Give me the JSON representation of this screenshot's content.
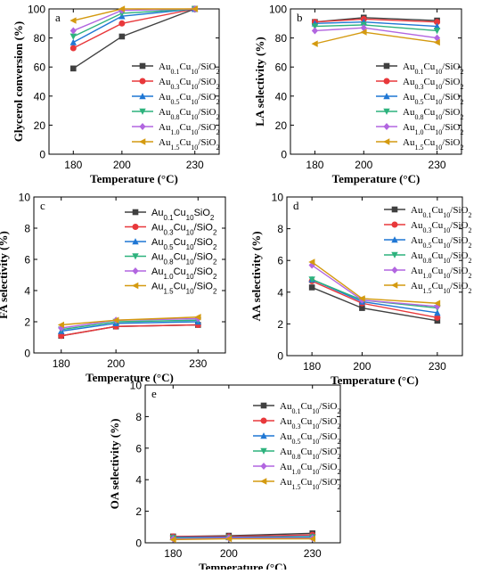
{
  "chart_data": [
    {
      "type": "line",
      "panel_label": "a",
      "ylabel": "Glycerol conversion (%)",
      "xlabel": "Temperature (°C)",
      "x": [
        180,
        200,
        230
      ],
      "x_tick_labels": [
        "180",
        "200",
        "230"
      ],
      "ylim": [
        0,
        100
      ],
      "y_ticks": [
        "0",
        "20",
        "40",
        "60",
        "80",
        "100"
      ],
      "legend_placement": "bottom-right",
      "series": [
        {
          "name": "Au0.1Cu10/SiO2",
          "values": [
            59,
            81,
            100
          ]
        },
        {
          "name": "Au0.3Cu10/SiO2",
          "values": [
            73,
            90,
            100
          ]
        },
        {
          "name": "Au0.5Cu10/SiO2",
          "values": [
            77,
            95,
            100
          ]
        },
        {
          "name": "Au0.8Cu10/SiO2",
          "values": [
            81,
            97,
            100
          ]
        },
        {
          "name": "Au1.0Cu10/SiO2",
          "values": [
            85,
            99,
            100
          ]
        },
        {
          "name": "Au1.5Cu10/SiO2",
          "values": [
            92,
            100,
            100
          ]
        }
      ]
    },
    {
      "type": "line",
      "panel_label": "b",
      "ylabel": "LA selectivity (%)",
      "xlabel": "Temperature (°C)",
      "x": [
        180,
        200,
        230
      ],
      "x_tick_labels": [
        "180",
        "200",
        "230"
      ],
      "ylim": [
        0,
        100
      ],
      "y_ticks": [
        "0",
        "20",
        "40",
        "60",
        "80",
        "100"
      ],
      "legend_placement": "bottom-right",
      "series": [
        {
          "name": "Au0.1Cu10/SiO2",
          "values": [
            91,
            94,
            92
          ]
        },
        {
          "name": "Au0.3Cu10/SiO2",
          "values": [
            91,
            93,
            91
          ]
        },
        {
          "name": "Au0.5Cu10/SiO2",
          "values": [
            90,
            91,
            88
          ]
        },
        {
          "name": "Au0.8Cu10/SiO2",
          "values": [
            88,
            89,
            85
          ]
        },
        {
          "name": "Au1.0Cu10/SiO2",
          "values": [
            85,
            87,
            80
          ]
        },
        {
          "name": "Au1.5Cu10/SiO2",
          "values": [
            76,
            84,
            77
          ]
        }
      ]
    },
    {
      "type": "line",
      "panel_label": "c",
      "ylabel": "FA selectivity (%)",
      "xlabel": "Temperature (°C)",
      "x": [
        180,
        200,
        230
      ],
      "x_tick_labels": [
        "180",
        "200",
        "230"
      ],
      "ylim": [
        0,
        10
      ],
      "y_ticks": [
        "0",
        "2",
        "4",
        "6",
        "8",
        "10"
      ],
      "legend_placement": "top-right",
      "series": [
        {
          "name": "Au0.1Cu10SiO2",
          "values": [
            1.1,
            1.7,
            1.8
          ]
        },
        {
          "name": "Au0.3Cu10/SiO2",
          "values": [
            1.1,
            1.7,
            1.8
          ]
        },
        {
          "name": "Au0.5Cu10/SiO2",
          "values": [
            1.4,
            1.9,
            2.0
          ]
        },
        {
          "name": "Au0.8Cu10/SiO2",
          "values": [
            1.5,
            2.0,
            2.1
          ]
        },
        {
          "name": "Au1.0Cu10/SiO2",
          "values": [
            1.6,
            2.1,
            2.2
          ]
        },
        {
          "name": "Au1.5Cu10/SiO2",
          "values": [
            1.8,
            2.1,
            2.3
          ]
        }
      ]
    },
    {
      "type": "line",
      "panel_label": "d",
      "ylabel": "AA selectivity (%)",
      "xlabel": "Temperature (°C)",
      "x": [
        180,
        200,
        230
      ],
      "x_tick_labels": [
        "180",
        "200",
        "230"
      ],
      "ylim": [
        0,
        10
      ],
      "y_ticks": [
        "0",
        "2",
        "4",
        "6",
        "8",
        "10"
      ],
      "legend_placement": "top-right",
      "series": [
        {
          "name": "Au0.1Cu10/SiO2",
          "values": [
            4.3,
            3.0,
            2.2
          ]
        },
        {
          "name": "Au0.3Cu10/SiO2",
          "values": [
            4.7,
            3.3,
            2.4
          ]
        },
        {
          "name": "Au0.5Cu10/SiO2",
          "values": [
            4.8,
            3.4,
            2.7
          ]
        },
        {
          "name": "Au0.8Cu10/SiO2",
          "values": [
            4.8,
            3.5,
            3.0
          ]
        },
        {
          "name": "Au1.0Cu10/SiO2",
          "values": [
            5.7,
            3.5,
            3.1
          ]
        },
        {
          "name": "Au1.5Cu10/SiO2",
          "values": [
            5.9,
            3.6,
            3.3
          ]
        }
      ]
    },
    {
      "type": "line",
      "panel_label": "e",
      "ylabel": "OA selectivity (%)",
      "xlabel": "Temperature (°C)",
      "x": [
        180,
        200,
        230
      ],
      "x_tick_labels": [
        "180",
        "200",
        "230"
      ],
      "ylim": [
        0,
        10
      ],
      "y_ticks": [
        "0",
        "2",
        "4",
        "6",
        "8",
        "10"
      ],
      "legend_placement": "top-right",
      "series": [
        {
          "name": "Au0.1Cu10/SiO2",
          "values": [
            0.4,
            0.45,
            0.6
          ]
        },
        {
          "name": "Au0.3Cu10/SiO2",
          "values": [
            0.4,
            0.4,
            0.5
          ]
        },
        {
          "name": "Au0.5Cu10/SiO2",
          "values": [
            0.35,
            0.35,
            0.4
          ]
        },
        {
          "name": "Au0.8Cu10/SiO2",
          "values": [
            0.3,
            0.3,
            0.35
          ]
        },
        {
          "name": "Au1.0Cu10/SiO2",
          "values": [
            0.25,
            0.3,
            0.3
          ]
        },
        {
          "name": "Au1.5Cu10/SiO2",
          "values": [
            0.2,
            0.25,
            0.25
          ]
        }
      ]
    }
  ],
  "series_style": [
    {
      "color": "#404040",
      "marker": "square"
    },
    {
      "color": "#e8383b",
      "marker": "circle"
    },
    {
      "color": "#1f77d4",
      "marker": "triangle-up"
    },
    {
      "color": "#2db27d",
      "marker": "triangle-down"
    },
    {
      "color": "#b266e0",
      "marker": "diamond"
    },
    {
      "color": "#d49a10",
      "marker": "triangle-left"
    }
  ]
}
